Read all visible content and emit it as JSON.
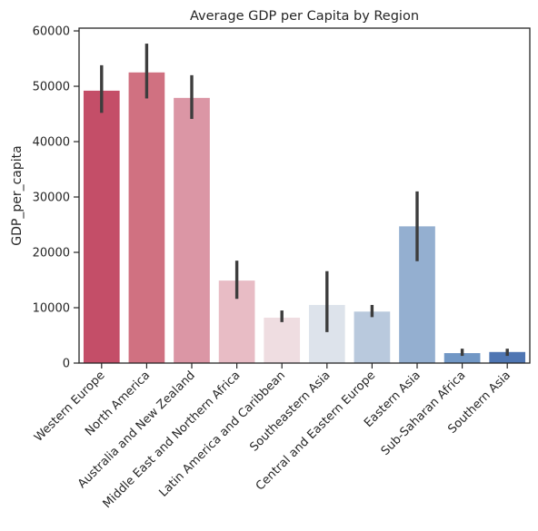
{
  "chart_data": {
    "type": "bar",
    "title": "Average GDP per Capita by Region",
    "xlabel": "",
    "ylabel": "GDP_per_capita",
    "ylim": [
      0,
      60500
    ],
    "yticks": [
      0,
      10000,
      20000,
      30000,
      40000,
      50000,
      60000
    ],
    "grid": false,
    "categories": [
      "Western Europe",
      "North America",
      "Australia and New Zealand",
      "Middle East and Northern Africa",
      "Latin America and Caribbean",
      "Southeastern Asia",
      "Central and Eastern Europe",
      "Eastern Asia",
      "Sub-Saharan Africa",
      "Southern Asia"
    ],
    "values": [
      49200,
      52500,
      47900,
      14900,
      8200,
      10500,
      9300,
      24700,
      1800,
      2000
    ],
    "error_low": [
      45200,
      47800,
      44100,
      11600,
      7400,
      5600,
      8300,
      18400,
      1300,
      1300
    ],
    "error_high": [
      53800,
      57700,
      52000,
      18500,
      9500,
      16600,
      10500,
      31000,
      2600,
      2600
    ],
    "colors": [
      "#c44e68",
      "#d07181",
      "#db96a5",
      "#e8bcc5",
      "#efdde1",
      "#dde3eb",
      "#b9c9dd",
      "#94afd0",
      "#7197c5",
      "#4f76b3"
    ]
  }
}
